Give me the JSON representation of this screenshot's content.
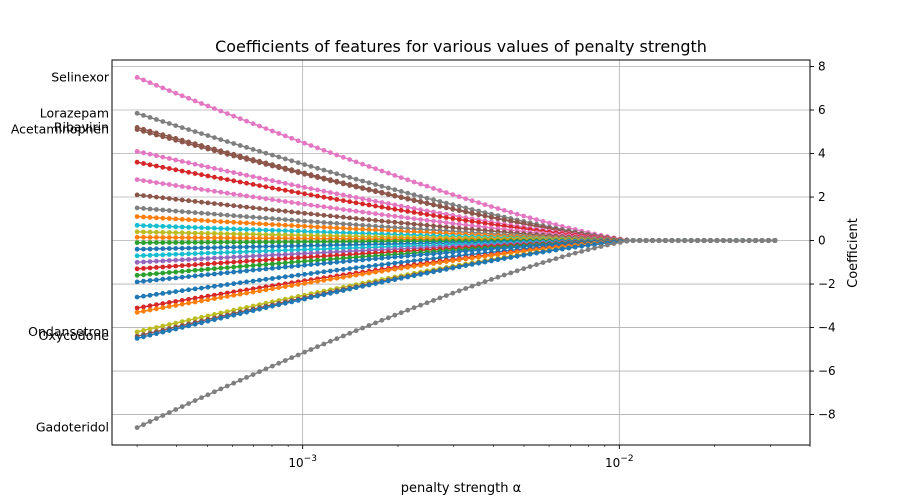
{
  "chart_data": {
    "type": "line",
    "title": "Coefficients of features for various values of penalty strength",
    "xlabel": "penalty strength α",
    "ylabel": "Coefficient",
    "x_scale": "log",
    "xlim": [
      0.00025,
      0.04
    ],
    "ylim": [
      -9.4,
      8.3
    ],
    "x_ticks": [
      {
        "value": 0.001,
        "base": "10",
        "exp": "−3"
      },
      {
        "value": 0.01,
        "base": "10",
        "exp": "−2"
      }
    ],
    "y_ticks": [
      -8,
      -6,
      -4,
      -2,
      0,
      2,
      4,
      6,
      8
    ],
    "y_tick_labels": [
      "−8",
      "−6",
      "−4",
      "−2",
      "0",
      "2",
      "4",
      "6",
      "8"
    ],
    "grid": true,
    "y_axis_side": "right",
    "alpha_range": [
      0.0003,
      0.031
    ],
    "alpha_threshold": 0.011,
    "series": [
      {
        "name": "Selinexor",
        "start": 7.5,
        "color": "#e377c2"
      },
      {
        "name": "Lorazepam",
        "start": 5.85,
        "color": "#7f7f7f"
      },
      {
        "name": "Ribavirin",
        "start": 5.2,
        "color": "#8c564b"
      },
      {
        "name": "Acetaminophen",
        "start": 5.1,
        "color": "#8c564b"
      },
      {
        "name": "",
        "start": 4.1,
        "color": "#e377c2"
      },
      {
        "name": "",
        "start": 3.6,
        "color": "#d62728"
      },
      {
        "name": "",
        "start": 2.8,
        "color": "#e377c2"
      },
      {
        "name": "",
        "start": 2.1,
        "color": "#8c564b"
      },
      {
        "name": "",
        "start": 1.5,
        "color": "#7f7f7f"
      },
      {
        "name": "",
        "start": 1.1,
        "color": "#ff7f0e"
      },
      {
        "name": "",
        "start": 0.7,
        "color": "#17becf"
      },
      {
        "name": "",
        "start": 0.4,
        "color": "#bcbd22"
      },
      {
        "name": "",
        "start": 0.15,
        "color": "#ff7f0e"
      },
      {
        "name": "",
        "start": -0.1,
        "color": "#2ca02c"
      },
      {
        "name": "",
        "start": -0.4,
        "color": "#1f77b4"
      },
      {
        "name": "",
        "start": -0.7,
        "color": "#17becf"
      },
      {
        "name": "",
        "start": -1.0,
        "color": "#9467bd"
      },
      {
        "name": "",
        "start": -1.3,
        "color": "#d62728"
      },
      {
        "name": "",
        "start": -1.6,
        "color": "#2ca02c"
      },
      {
        "name": "",
        "start": -1.9,
        "color": "#1f77b4"
      },
      {
        "name": "",
        "start": -2.6,
        "color": "#1f77b4"
      },
      {
        "name": "",
        "start": -3.1,
        "color": "#d62728"
      },
      {
        "name": "",
        "start": -3.3,
        "color": "#ff7f0e"
      },
      {
        "name": "Ondansetron",
        "start": -4.2,
        "color": "#bcbd22"
      },
      {
        "name": "Oxycodone",
        "start": -4.4,
        "color": "#8c564b"
      },
      {
        "name": "",
        "start": -4.5,
        "color": "#1f77b4"
      },
      {
        "name": "Gadoteridol",
        "start": -8.6,
        "color": "#7f7f7f"
      }
    ]
  }
}
